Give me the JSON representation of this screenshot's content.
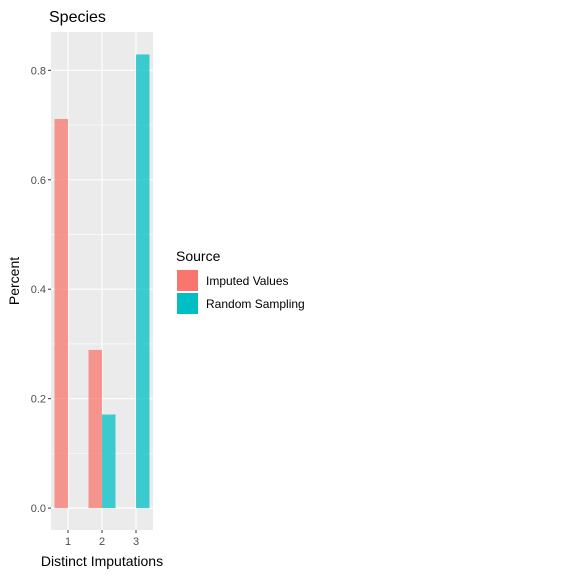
{
  "chart_data": {
    "type": "bar",
    "title": "Species",
    "xlabel": "Distinct Imputations",
    "ylabel": "Percent",
    "categories": [
      "1",
      "2",
      "3"
    ],
    "ylim": [
      -0.04,
      0.87
    ],
    "yticks": [
      0.0,
      0.2,
      0.4,
      0.6,
      0.8
    ],
    "ytick_labels": [
      "0.0",
      "0.2",
      "0.4",
      "0.6",
      "0.8"
    ],
    "grid": true,
    "legend": {
      "title": "Source",
      "position": "right"
    },
    "series": [
      {
        "name": "Imputed Values",
        "color": "#F8766D",
        "values": [
          0.711,
          0.289,
          0.0
        ]
      },
      {
        "name": "Random Sampling",
        "color": "#00BFC4",
        "values": [
          0.0,
          0.171,
          0.829
        ]
      }
    ]
  }
}
